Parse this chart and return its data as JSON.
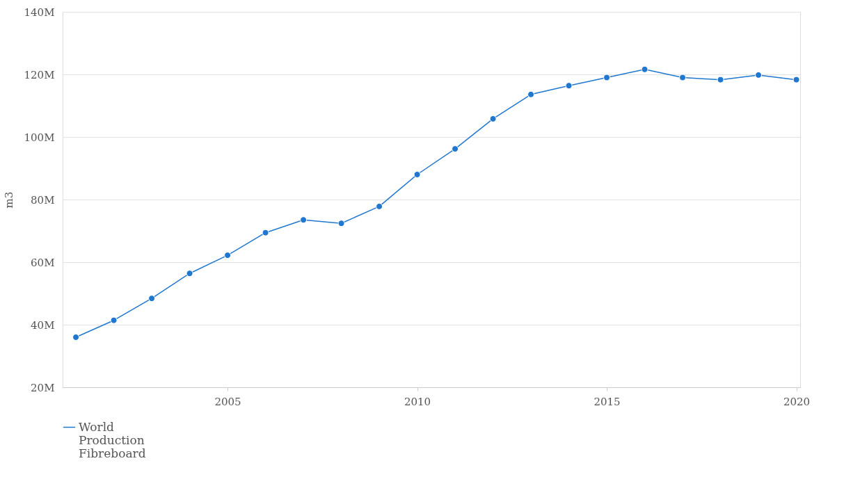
{
  "chart_data": {
    "type": "line",
    "ylabel": "m3",
    "x": [
      2001,
      2002,
      2003,
      2004,
      2005,
      2006,
      2007,
      2008,
      2009,
      2010,
      2011,
      2012,
      2013,
      2014,
      2015,
      2016,
      2017,
      2018,
      2019,
      2020
    ],
    "series": [
      {
        "name": "World Production Fibreboard",
        "color": "#1f77d0",
        "values": [
          36000000,
          41400000,
          48400000,
          56400000,
          62200000,
          69400000,
          73500000,
          72400000,
          77800000,
          88000000,
          96200000,
          105800000,
          113600000,
          116400000,
          119000000,
          121600000,
          119000000,
          118300000,
          119800000,
          118300000
        ]
      }
    ],
    "xlim": [
      2000.65,
      2020.1
    ],
    "xticks": [
      2005,
      2010,
      2015,
      2020
    ],
    "ylim": [
      20000000,
      140000000
    ],
    "yticks": [
      {
        "value": 20000000,
        "label": "20M"
      },
      {
        "value": 40000000,
        "label": "40M"
      },
      {
        "value": 60000000,
        "label": "60M"
      },
      {
        "value": 80000000,
        "label": "80M"
      },
      {
        "value": 100000000,
        "label": "100M"
      },
      {
        "value": 120000000,
        "label": "120M"
      },
      {
        "value": 140000000,
        "label": "140M"
      }
    ],
    "grid": "y",
    "legend": "bottom",
    "marker": "circle",
    "line_style": "solid"
  }
}
